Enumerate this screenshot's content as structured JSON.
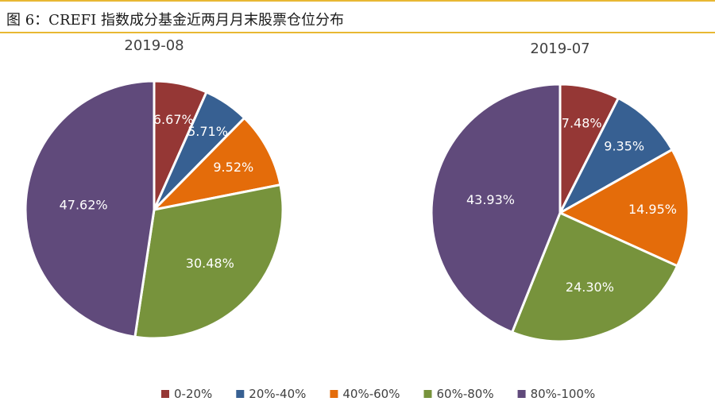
{
  "figure_title": "图 6：CREFI 指数成分基金近两月月末股票仓位分布",
  "chart_data": [
    {
      "type": "pie",
      "title": "2019-08",
      "categories": [
        "0-20%",
        "20%-40%",
        "40%-60%",
        "60%-80%",
        "80%-100%"
      ],
      "values": [
        6.67,
        5.71,
        9.52,
        30.48,
        47.62
      ],
      "labels": [
        "6.67%",
        "5.71%",
        "9.52%",
        "30.48%",
        "47.62%"
      ],
      "colors": [
        "#953735",
        "#376092",
        "#e46c0a",
        "#77933c",
        "#604a7b"
      ]
    },
    {
      "type": "pie",
      "title": "2019-07",
      "categories": [
        "0-20%",
        "20%-40%",
        "40%-60%",
        "60%-80%",
        "80%-100%"
      ],
      "values": [
        7.48,
        9.35,
        14.95,
        24.3,
        43.93
      ],
      "labels": [
        "7.48%",
        "9.35%",
        "14.95%",
        "24.30%",
        "43.93%"
      ],
      "colors": [
        "#953735",
        "#376092",
        "#e46c0a",
        "#77933c",
        "#604a7b"
      ]
    }
  ],
  "legend": {
    "placement": "bottom",
    "items": [
      {
        "label": "0-20%",
        "color": "#953735"
      },
      {
        "label": "20%-40%",
        "color": "#376092"
      },
      {
        "label": "40%-60%",
        "color": "#e46c0a"
      },
      {
        "label": "60%-80%",
        "color": "#77933c"
      },
      {
        "label": "80%-100%",
        "color": "#604a7b"
      }
    ]
  }
}
